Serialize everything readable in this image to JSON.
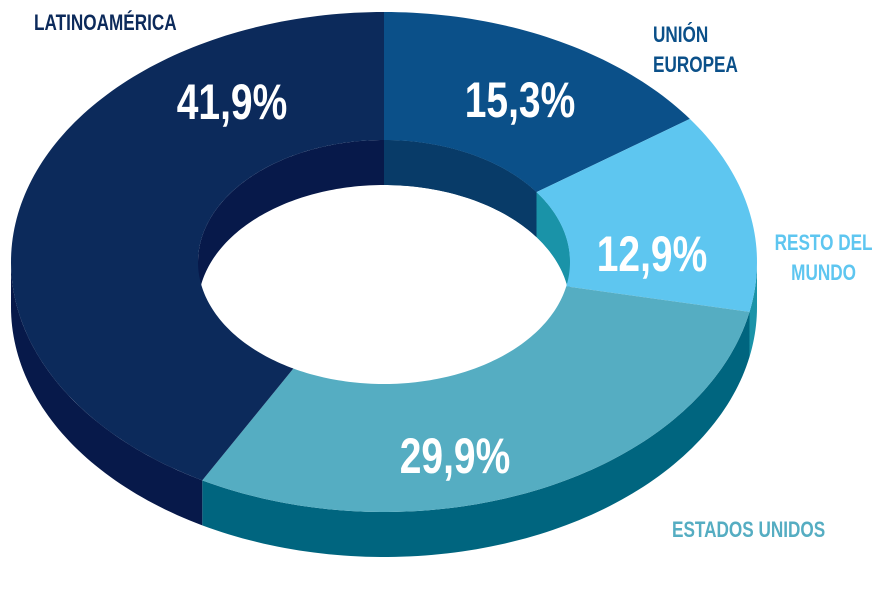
{
  "chart_data": {
    "type": "pie",
    "donut": true,
    "categories": [
      "UNIÓN EUROPEA",
      "RESTO DEL MUNDO",
      "ESTADOS UNIDOS",
      "LATINOAMÉRICA"
    ],
    "values": [
      15.3,
      12.9,
      29.9,
      41.9
    ],
    "value_labels": [
      "15,3%",
      "12,9%",
      "29,9%",
      "41,9%"
    ],
    "colors": [
      "#0b5089",
      "#5ec6f0",
      "#55adc2",
      "#0c2a5b"
    ],
    "depth_colors": [
      "#083b68",
      "#1a93a8",
      "#00657f",
      "#07194a"
    ]
  }
}
